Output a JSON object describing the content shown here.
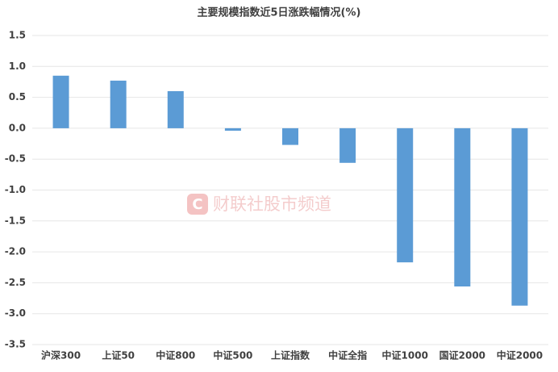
{
  "chart_data": {
    "type": "bar",
    "title": "主要规模指数近5日涨跌幅情况(%)",
    "watermark": "财联社股市频道",
    "categories": [
      "沪深300",
      "上证50",
      "中证800",
      "中证500",
      "上证指数",
      "中证全指",
      "中证1000",
      "国证2000",
      "中证2000"
    ],
    "values": [
      0.85,
      0.77,
      0.6,
      -0.04,
      -0.27,
      -0.56,
      -2.17,
      -2.56,
      -2.87
    ],
    "color": "#5b9bd5",
    "ylim": [
      -3.5,
      1.5
    ],
    "yticks": [
      1.5,
      {
        "value": 1,
        "label": "1.0"
      },
      0.5,
      {
        "value": 0,
        "label": "0.0"
      },
      -0.5,
      {
        "value": -1,
        "label": "-1.0"
      },
      -1.5,
      {
        "value": -2,
        "label": "-2.0"
      },
      -2.5,
      {
        "value": -3,
        "label": "-3.0"
      },
      -3.5
    ],
    "grid": true
  }
}
